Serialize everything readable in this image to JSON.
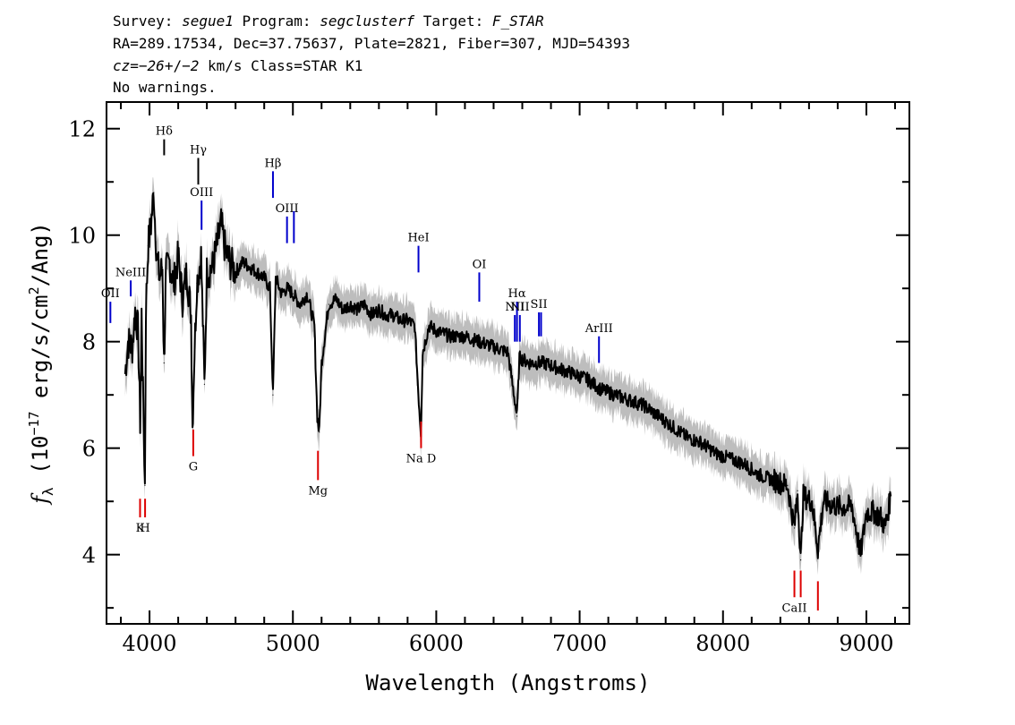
{
  "header": {
    "line1": [
      {
        "t": "Survey: ",
        "i": false
      },
      {
        "t": "segue1",
        "i": true
      },
      {
        "t": " Program: ",
        "i": false
      },
      {
        "t": "segclusterf",
        "i": true
      },
      {
        "t": " Target: ",
        "i": false
      },
      {
        "t": "F_STAR",
        "i": true
      }
    ],
    "line2": "RA=289.17534, Dec=37.75637, Plate=2821, Fiber=307, MJD=54393",
    "line3": [
      {
        "t": "cz=",
        "i": true
      },
      {
        "t": "−26",
        "i": true
      },
      {
        "t": "+/",
        "i": false
      },
      {
        "t": "−2",
        "i": true
      },
      {
        "t": " km/s Class=STAR K1",
        "i": false
      }
    ],
    "line4": "No warnings."
  },
  "colors": {
    "flux": "#000000",
    "error_band": "#bdbdbd",
    "emission": "#0000cc",
    "absorption": "#dd0000",
    "reference": "#000000"
  },
  "chart_data": {
    "type": "line",
    "xlabel": "Wavelength (Angstroms)",
    "ylabel": {
      "f": "f",
      "sub": "λ",
      "main": " (10",
      "sup1": "−17",
      "mid": " erg/s/cm",
      "sup2": "2",
      "end": "/Ang)"
    },
    "xlim": [
      3700,
      9300
    ],
    "ylim": [
      2.7,
      12.5
    ],
    "x_ticks": [
      4000,
      5000,
      6000,
      7000,
      8000,
      9000
    ],
    "y_ticks": [
      4,
      6,
      8,
      10,
      12
    ],
    "x_minor_step": 200,
    "y_minor_step": 1,
    "series": [
      {
        "values": [
          [
            3830,
            7.4
          ],
          [
            3850,
            8.0
          ],
          [
            3880,
            7.9
          ],
          [
            3900,
            8.6
          ],
          [
            3920,
            8.2
          ],
          [
            3935,
            6.5
          ],
          [
            3945,
            8.5
          ],
          [
            3955,
            7.0
          ],
          [
            3968,
            5.3
          ],
          [
            3975,
            8.6
          ],
          [
            3990,
            9.8
          ],
          [
            4010,
            10.2
          ],
          [
            4030,
            10.8
          ],
          [
            4050,
            9.6
          ],
          [
            4070,
            9.2
          ],
          [
            4090,
            9.4
          ],
          [
            4101,
            7.6
          ],
          [
            4115,
            9.3
          ],
          [
            4140,
            9.5
          ],
          [
            4170,
            9.1
          ],
          [
            4200,
            9.6
          ],
          [
            4230,
            8.8
          ],
          [
            4260,
            9.3
          ],
          [
            4290,
            8.5
          ],
          [
            4300,
            6.4
          ],
          [
            4310,
            7.5
          ],
          [
            4330,
            9.1
          ],
          [
            4360,
            9.6
          ],
          [
            4383,
            7.2
          ],
          [
            4400,
            9.3
          ],
          [
            4440,
            9.4
          ],
          [
            4470,
            9.8
          ],
          [
            4500,
            10.2
          ],
          [
            4530,
            9.7
          ],
          [
            4560,
            9.5
          ],
          [
            4600,
            9.3
          ],
          [
            4650,
            9.5
          ],
          [
            4700,
            9.4
          ],
          [
            4750,
            9.3
          ],
          [
            4800,
            9.2
          ],
          [
            4840,
            9.0
          ],
          [
            4861,
            7.0
          ],
          [
            4880,
            9.2
          ],
          [
            4920,
            8.9
          ],
          [
            4960,
            9.0
          ],
          [
            5000,
            8.9
          ],
          [
            5050,
            8.7
          ],
          [
            5100,
            8.9
          ],
          [
            5150,
            8.3
          ],
          [
            5170,
            6.6
          ],
          [
            5184,
            6.3
          ],
          [
            5200,
            7.6
          ],
          [
            5250,
            8.7
          ],
          [
            5300,
            8.8
          ],
          [
            5350,
            8.6
          ],
          [
            5400,
            8.7
          ],
          [
            5450,
            8.6
          ],
          [
            5500,
            8.7
          ],
          [
            5550,
            8.5
          ],
          [
            5600,
            8.6
          ],
          [
            5650,
            8.5
          ],
          [
            5700,
            8.5
          ],
          [
            5750,
            8.4
          ],
          [
            5800,
            8.4
          ],
          [
            5850,
            8.3
          ],
          [
            5878,
            6.9
          ],
          [
            5893,
            6.3
          ],
          [
            5905,
            7.8
          ],
          [
            5950,
            8.3
          ],
          [
            6000,
            8.2
          ],
          [
            6100,
            8.1
          ],
          [
            6200,
            8.1
          ],
          [
            6300,
            8.0
          ],
          [
            6400,
            7.9
          ],
          [
            6500,
            7.8
          ],
          [
            6563,
            6.6
          ],
          [
            6580,
            7.7
          ],
          [
            6650,
            7.6
          ],
          [
            6750,
            7.6
          ],
          [
            6850,
            7.5
          ],
          [
            6950,
            7.4
          ],
          [
            7050,
            7.3
          ],
          [
            7150,
            7.1
          ],
          [
            7250,
            7.0
          ],
          [
            7350,
            6.9
          ],
          [
            7450,
            6.8
          ],
          [
            7550,
            6.6
          ],
          [
            7650,
            6.4
          ],
          [
            7750,
            6.2
          ],
          [
            7850,
            6.1
          ],
          [
            7950,
            5.9
          ],
          [
            8050,
            5.8
          ],
          [
            8150,
            5.7
          ],
          [
            8250,
            5.5
          ],
          [
            8350,
            5.4
          ],
          [
            8450,
            5.3
          ],
          [
            8498,
            4.5
          ],
          [
            8520,
            5.2
          ],
          [
            8542,
            3.9
          ],
          [
            8560,
            5.1
          ],
          [
            8620,
            5.0
          ],
          [
            8662,
            4.1
          ],
          [
            8700,
            5.0
          ],
          [
            8800,
            4.9
          ],
          [
            8900,
            4.9
          ],
          [
            8960,
            4.0
          ],
          [
            9000,
            4.8
          ],
          [
            9050,
            4.8
          ],
          [
            9100,
            4.7
          ],
          [
            9130,
            4.5
          ],
          [
            9170,
            5.1
          ]
        ]
      }
    ],
    "line_markers": [
      {
        "label": "NeIII",
        "x": 3869,
        "y0": 8.85,
        "y1": 9.15,
        "type": "emission"
      },
      {
        "label": "OII",
        "x": 3727,
        "y0": 8.35,
        "y1": 8.75,
        "type": "emission"
      },
      {
        "label": "Hδ",
        "x": 4102,
        "y0": 11.5,
        "y1": 11.8,
        "type": "reference"
      },
      {
        "label": "Hγ",
        "x": 4340,
        "y0": 10.95,
        "y1": 11.45,
        "type": "reference"
      },
      {
        "label": "OIII",
        "x": 4363,
        "y0": 10.1,
        "y1": 10.65,
        "type": "emission"
      },
      {
        "label": "Hβ",
        "x": 4861,
        "y0": 10.7,
        "y1": 11.2,
        "type": "emission"
      },
      {
        "label": "OIII",
        "x": 4959,
        "y0": 9.85,
        "y1": 10.35,
        "type": "emission"
      },
      {
        "label": "",
        "x": 5007,
        "y0": 9.85,
        "y1": 10.45,
        "type": "emission"
      },
      {
        "label": "HeI",
        "x": 5876,
        "y0": 9.3,
        "y1": 9.8,
        "type": "emission"
      },
      {
        "label": "OI",
        "x": 6300,
        "y0": 8.75,
        "y1": 9.3,
        "type": "emission"
      },
      {
        "label": "NII",
        "x": 6548,
        "y0": 8.0,
        "y1": 8.5,
        "type": "emission"
      },
      {
        "label": "Hα",
        "x": 6563,
        "y0": 8.0,
        "y1": 8.75,
        "type": "emission"
      },
      {
        "label": "NII",
        "x": 6583,
        "y0": 8.0,
        "y1": 8.5,
        "type": "emission"
      },
      {
        "label": "SII",
        "x": 6716,
        "y0": 8.1,
        "y1": 8.55,
        "type": "emission"
      },
      {
        "label": "",
        "x": 6731,
        "y0": 8.1,
        "y1": 8.55,
        "type": "emission"
      },
      {
        "label": "ArIII",
        "x": 7135,
        "y0": 7.6,
        "y1": 8.1,
        "type": "emission"
      },
      {
        "label": "K",
        "x": 3934,
        "y0": 4.7,
        "y1": 5.05,
        "type": "absorption"
      },
      {
        "label": "H",
        "x": 3969,
        "y0": 4.7,
        "y1": 5.05,
        "type": "absorption"
      },
      {
        "label": "G",
        "x": 4305,
        "y0": 6.35,
        "y1": 5.85,
        "type": "absorption"
      },
      {
        "label": "Mg",
        "x": 5175,
        "y0": 5.95,
        "y1": 5.4,
        "type": "absorption"
      },
      {
        "label": "Na  D",
        "x": 5894,
        "y0": 6.5,
        "y1": 6.0,
        "type": "absorption"
      },
      {
        "label": "CaII",
        "x": 8498,
        "y0": 3.7,
        "y1": 3.2,
        "type": "absorption"
      },
      {
        "label": "",
        "x": 8542,
        "y0": 3.7,
        "y1": 3.2,
        "type": "absorption"
      },
      {
        "label": "",
        "x": 8662,
        "y0": 3.5,
        "y1": 2.95,
        "type": "absorption"
      }
    ],
    "grid": false,
    "legend": "none"
  }
}
